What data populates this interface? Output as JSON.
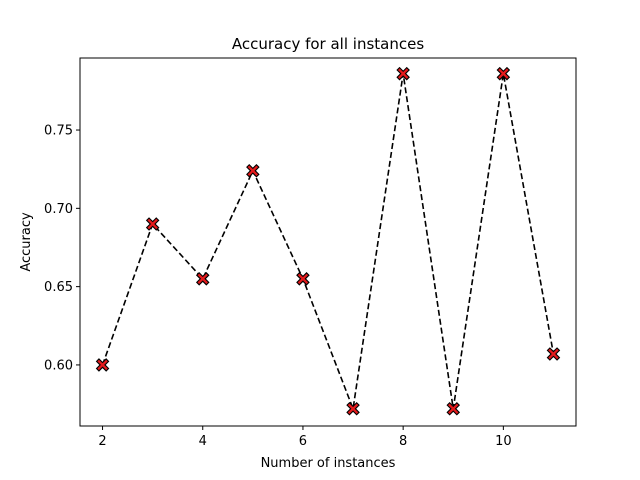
{
  "chart_data": {
    "type": "line",
    "title": "Accuracy for all instances",
    "xlabel": "Number of instances",
    "ylabel": "Accuracy",
    "x": [
      2,
      3,
      4,
      5,
      6,
      7,
      8,
      9,
      10,
      11
    ],
    "values": [
      0.6,
      0.69,
      0.655,
      0.724,
      0.655,
      0.572,
      0.786,
      0.572,
      0.786,
      0.607
    ],
    "xlim": [
      1.55,
      11.45
    ],
    "ylim": [
      0.561,
      0.796
    ],
    "xticks": [
      2,
      4,
      6,
      8,
      10
    ],
    "xtick_labels": [
      "2",
      "4",
      "6",
      "8",
      "10"
    ],
    "yticks": [
      0.6,
      0.65,
      0.7,
      0.75
    ],
    "ytick_labels": [
      "0.60",
      "0.65",
      "0.70",
      "0.75"
    ],
    "grid": false,
    "line_style": "dashed",
    "line_color": "#000000",
    "marker": "X",
    "marker_color": "#e41a1c",
    "marker_edge_color": "#000000"
  }
}
